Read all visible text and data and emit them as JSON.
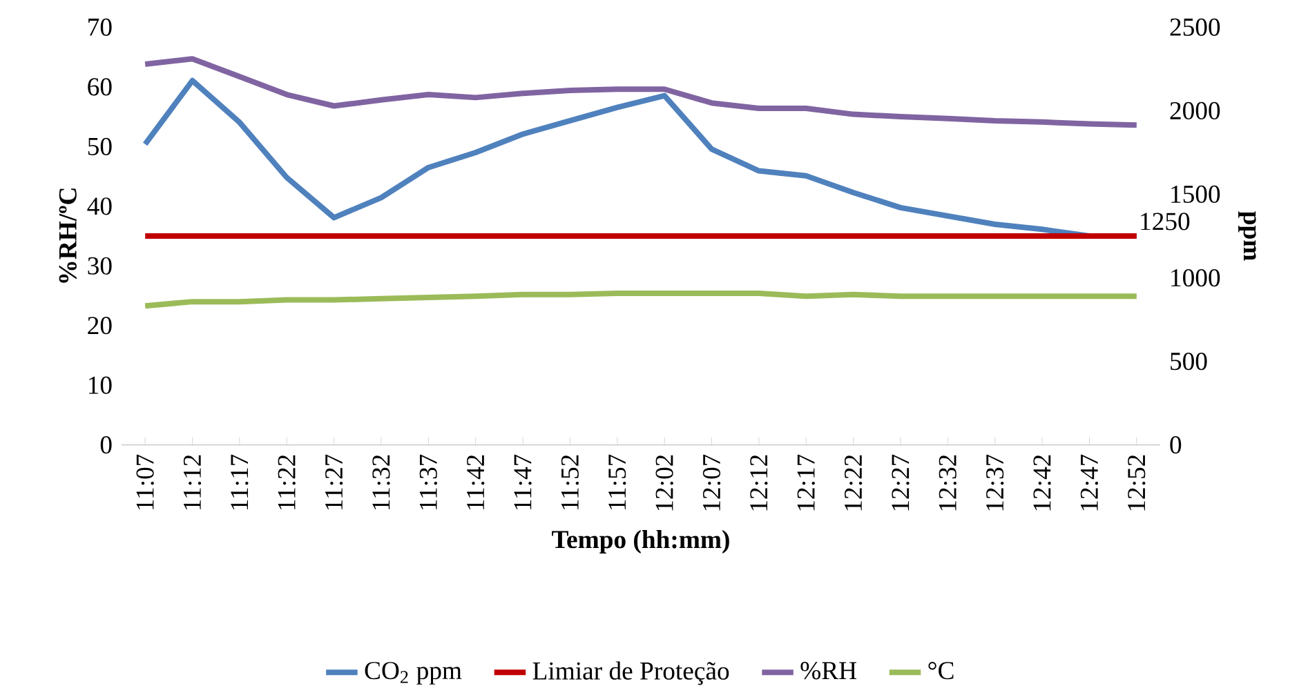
{
  "chart_data": {
    "type": "line",
    "categories": [
      "11:07",
      "11:12",
      "11:17",
      "11:22",
      "11:27",
      "11:32",
      "11:37",
      "11:42",
      "11:47",
      "11:52",
      "11:57",
      "12:02",
      "12:07",
      "12:12",
      "12:17",
      "12:22",
      "12:27",
      "12:32",
      "12:37",
      "12:42",
      "12:47",
      "12:52"
    ],
    "xlabel": "Tempo (hh:mm)",
    "ylabel": "%RH/ºC",
    "y2label": "ppm",
    "series": [
      {
        "name": "CO$_{2}$ ppm",
        "color": "#4f81bd",
        "axis": "y2",
        "values": [
          1800,
          2180,
          1930,
          1600,
          1360,
          1480,
          1660,
          1750,
          1860,
          1940,
          2020,
          2090,
          1770,
          1640,
          1610,
          1510,
          1420,
          1370,
          1320,
          1290,
          1250,
          1250
        ]
      },
      {
        "name": "Limiar de Proteção",
        "color": "#c00000",
        "axis": "y2",
        "values": [
          1250,
          1250,
          1250,
          1250,
          1250,
          1250,
          1250,
          1250,
          1250,
          1250,
          1250,
          1250,
          1250,
          1250,
          1250,
          1250,
          1250,
          1250,
          1250,
          1250,
          1250,
          1250
        ],
        "value_labels": [
          null,
          null,
          null,
          null,
          null,
          null,
          null,
          null,
          null,
          null,
          null,
          null,
          null,
          null,
          null,
          null,
          null,
          null,
          null,
          null,
          null,
          "1250"
        ]
      },
      {
        "name": "%RH",
        "color": "#8064a2",
        "axis": "y",
        "values": [
          63.8,
          64.7,
          61.7,
          58.7,
          56.8,
          57.8,
          58.7,
          58.2,
          58.9,
          59.4,
          59.6,
          59.6,
          57.3,
          56.4,
          56.4,
          55.4,
          55.0,
          54.7,
          54.3,
          54.1,
          53.8,
          53.6
        ]
      },
      {
        "name": "°C",
        "color": "#9bbb59",
        "axis": "y",
        "values": [
          23.3,
          24.0,
          24.0,
          24.3,
          24.3,
          24.5,
          24.7,
          24.9,
          25.2,
          25.2,
          25.4,
          25.4,
          25.4,
          25.4,
          24.9,
          25.2,
          24.9,
          24.9,
          24.9,
          24.9,
          24.9,
          24.9
        ]
      }
    ],
    "ylim": [
      0,
      70
    ],
    "yticks": [
      0,
      10,
      20,
      30,
      40,
      50,
      60,
      70
    ],
    "y2lim": [
      0,
      2500
    ],
    "y2ticks": [
      0,
      500,
      1000,
      1500,
      2000,
      2500
    ],
    "legend": "bottom"
  }
}
